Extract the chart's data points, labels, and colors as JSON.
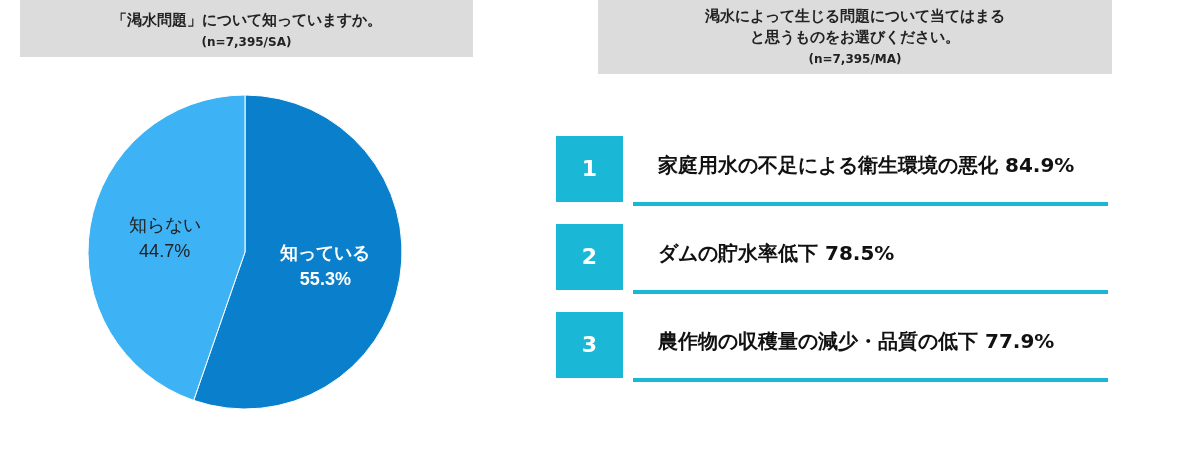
{
  "chart_data": [
    {
      "type": "pie",
      "title": "「渇水問題」について知っていますか。",
      "subtitle": "(n=7,395/SA)",
      "categories": [
        "知っている",
        "知らない"
      ],
      "values": [
        55.3,
        44.7
      ],
      "colors": [
        "#0a7fcc",
        "#3db3f5"
      ],
      "value_labels": [
        "55.3%",
        "44.7%"
      ],
      "legend": false
    },
    {
      "type": "other",
      "title": "渇水によって生じる問題について当てはまると思うものをお選びください。",
      "subtitle": "(n=7,395/MA)",
      "annotations": [
        "1",
        "2",
        "3"
      ],
      "categories": [
        "家庭用水の不足による衛生環境の悪化",
        "ダムの貯水率低下",
        "農作物の収穫量の減少・品質の低下"
      ],
      "value_labels": [
        "84.9%",
        "78.5%",
        "77.9%"
      ]
    }
  ]
}
